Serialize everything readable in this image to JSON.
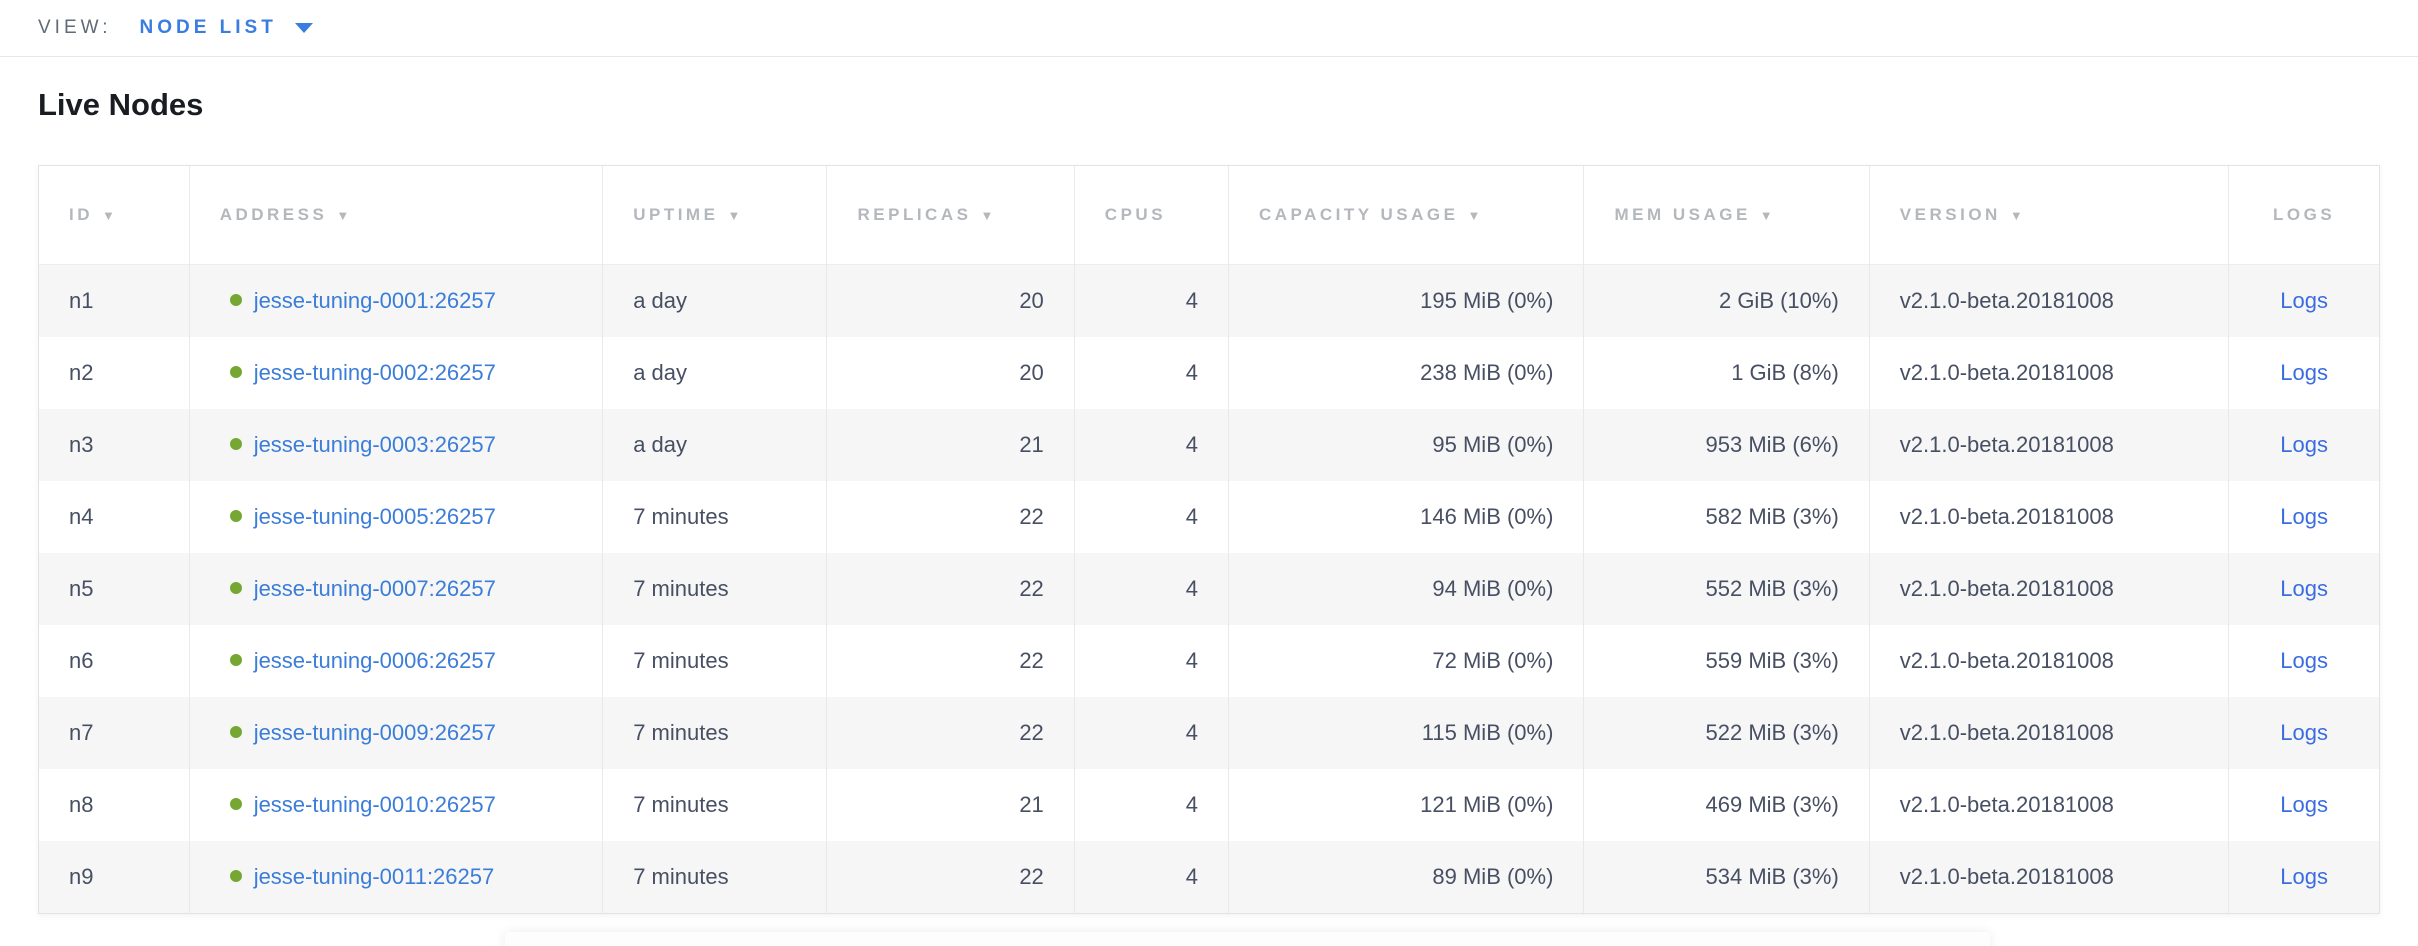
{
  "view_bar": {
    "label": "VIEW:",
    "selected": "NODE LIST"
  },
  "page": {
    "title": "Live Nodes"
  },
  "table": {
    "columns": [
      {
        "key": "id",
        "label": "ID",
        "sortable": true,
        "align": "left"
      },
      {
        "key": "address",
        "label": "ADDRESS",
        "sortable": true,
        "align": "left"
      },
      {
        "key": "uptime",
        "label": "UPTIME",
        "sortable": true,
        "align": "left"
      },
      {
        "key": "replicas",
        "label": "REPLICAS",
        "sortable": true,
        "align": "right"
      },
      {
        "key": "cpus",
        "label": "CPUS",
        "sortable": false,
        "align": "right"
      },
      {
        "key": "capacity",
        "label": "CAPACITY USAGE",
        "sortable": true,
        "align": "right"
      },
      {
        "key": "mem",
        "label": "MEM USAGE",
        "sortable": true,
        "align": "right"
      },
      {
        "key": "version",
        "label": "VERSION",
        "sortable": true,
        "align": "left"
      },
      {
        "key": "logs",
        "label": "LOGS",
        "sortable": false,
        "align": "center"
      }
    ],
    "rows": [
      {
        "id": "n1",
        "address": "jesse-tuning-0001:26257",
        "uptime": "a day",
        "replicas": "20",
        "cpus": "4",
        "capacity": "195 MiB (0%)",
        "mem": "2 GiB (10%)",
        "version": "v2.1.0-beta.20181008",
        "logs": "Logs"
      },
      {
        "id": "n2",
        "address": "jesse-tuning-0002:26257",
        "uptime": "a day",
        "replicas": "20",
        "cpus": "4",
        "capacity": "238 MiB (0%)",
        "mem": "1 GiB (8%)",
        "version": "v2.1.0-beta.20181008",
        "logs": "Logs"
      },
      {
        "id": "n3",
        "address": "jesse-tuning-0003:26257",
        "uptime": "a day",
        "replicas": "21",
        "cpus": "4",
        "capacity": "95 MiB (0%)",
        "mem": "953 MiB (6%)",
        "version": "v2.1.0-beta.20181008",
        "logs": "Logs"
      },
      {
        "id": "n4",
        "address": "jesse-tuning-0005:26257",
        "uptime": "7 minutes",
        "replicas": "22",
        "cpus": "4",
        "capacity": "146 MiB (0%)",
        "mem": "582 MiB (3%)",
        "version": "v2.1.0-beta.20181008",
        "logs": "Logs"
      },
      {
        "id": "n5",
        "address": "jesse-tuning-0007:26257",
        "uptime": "7 minutes",
        "replicas": "22",
        "cpus": "4",
        "capacity": "94 MiB (0%)",
        "mem": "552 MiB (3%)",
        "version": "v2.1.0-beta.20181008",
        "logs": "Logs"
      },
      {
        "id": "n6",
        "address": "jesse-tuning-0006:26257",
        "uptime": "7 minutes",
        "replicas": "22",
        "cpus": "4",
        "capacity": "72 MiB (0%)",
        "mem": "559 MiB (3%)",
        "version": "v2.1.0-beta.20181008",
        "logs": "Logs"
      },
      {
        "id": "n7",
        "address": "jesse-tuning-0009:26257",
        "uptime": "7 minutes",
        "replicas": "22",
        "cpus": "4",
        "capacity": "115 MiB (0%)",
        "mem": "522 MiB (3%)",
        "version": "v2.1.0-beta.20181008",
        "logs": "Logs"
      },
      {
        "id": "n8",
        "address": "jesse-tuning-0010:26257",
        "uptime": "7 minutes",
        "replicas": "21",
        "cpus": "4",
        "capacity": "121 MiB (0%)",
        "mem": "469 MiB (3%)",
        "version": "v2.1.0-beta.20181008",
        "logs": "Logs"
      },
      {
        "id": "n9",
        "address": "jesse-tuning-0011:26257",
        "uptime": "7 minutes",
        "replicas": "22",
        "cpus": "4",
        "capacity": "89 MiB (0%)",
        "mem": "534 MiB (3%)",
        "version": "v2.1.0-beta.20181008",
        "logs": "Logs"
      }
    ]
  },
  "icons": {
    "sort_desc": "▼",
    "dropdown_caret": "caret-down",
    "node_status": "live-dot"
  },
  "colors": {
    "accent_blue": "#3a7de1",
    "link_blue": "#3b7dd8",
    "logs_link_blue": "#3b6de0",
    "live_green": "#76a634",
    "header_gray": "#b4b7bb",
    "body_text": "#474f63",
    "row_alt_bg": "#f6f6f6",
    "border": "#e3e3e3"
  }
}
